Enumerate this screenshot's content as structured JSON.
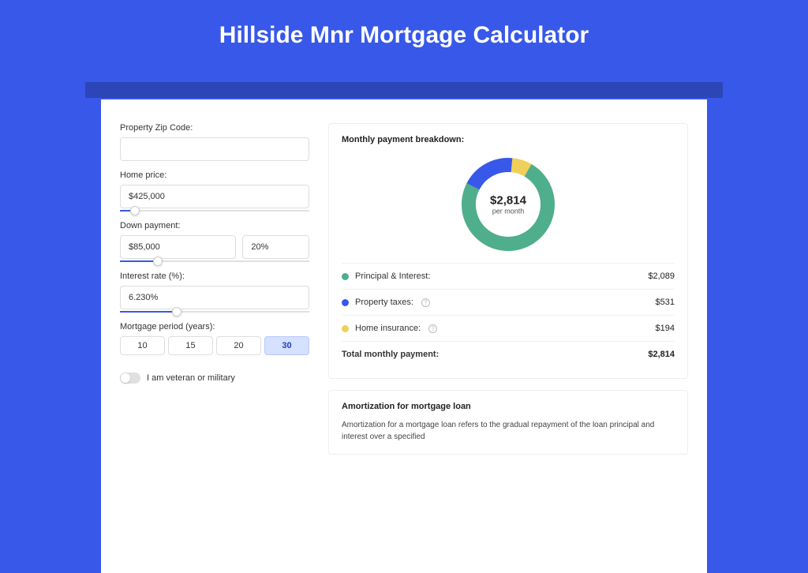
{
  "colors": {
    "page_bg": "#3858e9",
    "shadow_bg": "#2c46b8",
    "card_bg": "#ffffff",
    "slider_fill": "#3858e9",
    "title_color": "#ffffff"
  },
  "page_title": "Hillside Mnr Mortgage Calculator",
  "form": {
    "zip": {
      "label": "Property Zip Code:",
      "value": ""
    },
    "home_price": {
      "label": "Home price:",
      "value": "$425,000",
      "slider_pct": 8
    },
    "down_payment": {
      "label": "Down payment:",
      "value": "$85,000",
      "pct_value": "20%",
      "slider_pct": 20
    },
    "interest_rate": {
      "label": "Interest rate (%):",
      "value": "6.230%",
      "slider_pct": 30
    },
    "period": {
      "label": "Mortgage period (years):",
      "options": [
        "10",
        "15",
        "20",
        "30"
      ],
      "active_index": 3
    },
    "veteran": {
      "label": "I am veteran or military",
      "checked": false
    }
  },
  "breakdown": {
    "title": "Monthly payment breakdown:",
    "total_amount": "$2,814",
    "total_sub": "per month",
    "donut": {
      "slices": [
        {
          "key": "principal_interest",
          "value": 2089,
          "color": "#4fae8b"
        },
        {
          "key": "property_taxes",
          "value": 531,
          "color": "#3858e9"
        },
        {
          "key": "home_insurance",
          "value": 194,
          "color": "#f0cf5a"
        }
      ],
      "stroke_width": 18,
      "radius": 50,
      "start_angle_deg": -60
    },
    "items": [
      {
        "label": "Principal & Interest:",
        "amount": "$2,089",
        "color": "#4fae8b",
        "info": false
      },
      {
        "label": "Property taxes:",
        "amount": "$531",
        "color": "#3858e9",
        "info": true
      },
      {
        "label": "Home insurance:",
        "amount": "$194",
        "color": "#f0cf5a",
        "info": true
      }
    ],
    "total_row": {
      "label": "Total monthly payment:",
      "amount": "$2,814"
    }
  },
  "amortization": {
    "title": "Amortization for mortgage loan",
    "text": "Amortization for a mortgage loan refers to the gradual repayment of the loan principal and interest over a specified"
  }
}
